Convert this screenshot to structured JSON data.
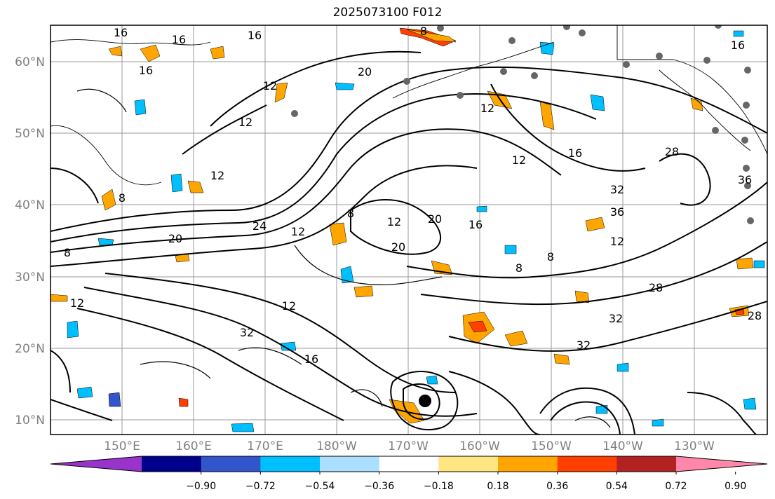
{
  "title": "2025073100 F012",
  "latitude_labels": [
    "60°N",
    "50°N",
    "40°N",
    "30°N",
    "20°N",
    "10°N"
  ],
  "longitude_labels": [
    "150°E",
    "160°E",
    "170°E",
    "180°W",
    "170°W",
    "160°W",
    "150°W",
    "140°W",
    "130°W"
  ],
  "colorbar": {
    "colors": [
      "#9933cc",
      "#00008b",
      "#3355cc",
      "#00bfff",
      "#aadfff",
      "#ffffff",
      "#ffe680",
      "#ffa500",
      "#ff4000",
      "#b22222",
      "#ff88aa"
    ],
    "tick_labels": [
      "−0.90",
      "−0.72",
      "−0.54",
      "−0.36",
      "−0.18",
      "0.18",
      "0.36",
      "0.54",
      "0.72",
      "0.90"
    ]
  },
  "contour_labels": [
    "16",
    "16",
    "16",
    "8",
    "20",
    "16",
    "12",
    "12",
    "12",
    "8",
    "16",
    "12",
    "12",
    "16",
    "28",
    "32",
    "36",
    "36",
    "24",
    "20",
    "8",
    "12",
    "12",
    "12",
    "8",
    "12",
    "20",
    "20",
    "16",
    "8",
    "8",
    "12",
    "28",
    "32",
    "28",
    "32",
    "32",
    "16"
  ],
  "markers": {
    "storm_center": "large black dot",
    "stations": "grey dots"
  }
}
